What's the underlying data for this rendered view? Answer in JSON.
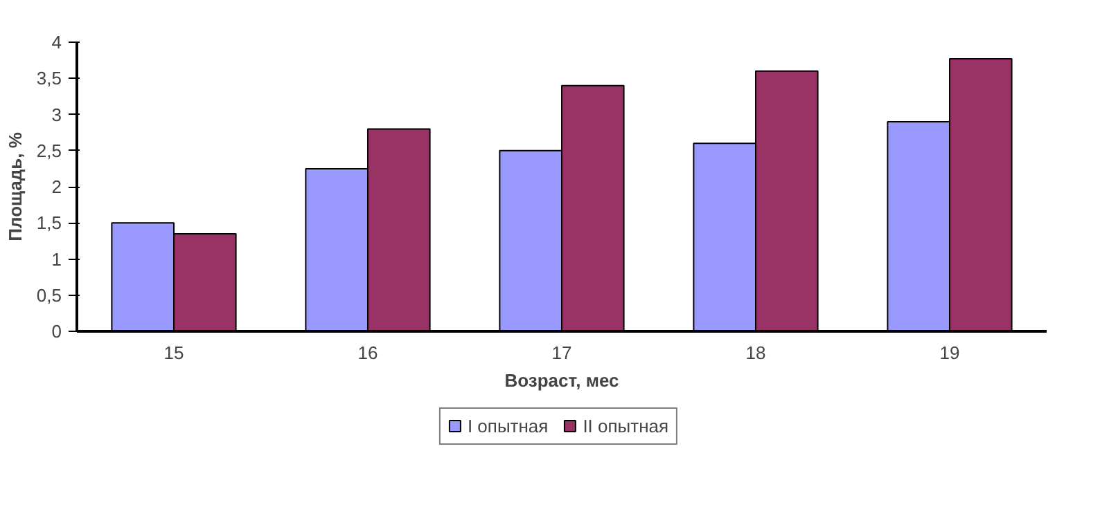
{
  "chart_data": {
    "type": "bar",
    "xlabel": "Возраст, мес",
    "ylabel": "Площадь, %",
    "categories": [
      "15",
      "16",
      "17",
      "18",
      "19"
    ],
    "series": [
      {
        "name": "I опытная",
        "color": "#9999ff",
        "values": [
          1.5,
          2.25,
          2.5,
          2.6,
          2.9
        ]
      },
      {
        "name": "II опытная",
        "color": "#993366",
        "values": [
          1.35,
          2.8,
          3.4,
          3.6,
          3.77
        ]
      }
    ],
    "ylim": [
      0,
      4
    ],
    "yticks": [
      0,
      {
        "value": 0.5,
        "label": "0,5"
      },
      1,
      {
        "value": 1.5,
        "label": "1,5"
      },
      2,
      {
        "value": 2.5,
        "label": "2,5"
      },
      3,
      {
        "value": 3.5,
        "label": "3,5"
      },
      4
    ],
    "grid": false,
    "legend": "bottom"
  }
}
